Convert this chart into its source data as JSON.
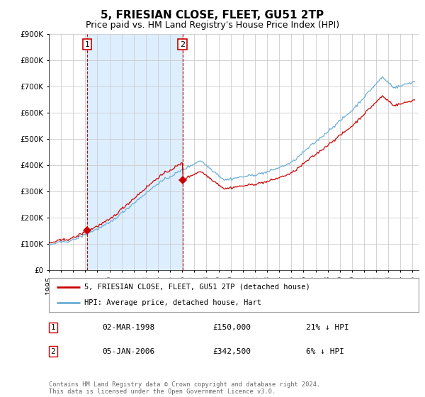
{
  "title": "5, FRIESIAN CLOSE, FLEET, GU51 2TP",
  "subtitle": "Price paid vs. HM Land Registry's House Price Index (HPI)",
  "ylim": [
    0,
    900000
  ],
  "yticks": [
    0,
    100000,
    200000,
    300000,
    400000,
    500000,
    600000,
    700000,
    800000,
    900000
  ],
  "ytick_labels": [
    "£0",
    "£100K",
    "£200K",
    "£300K",
    "£400K",
    "£500K",
    "£600K",
    "£700K",
    "£800K",
    "£900K"
  ],
  "xlim_start": 1995.0,
  "xlim_end": 2025.5,
  "sale1_x": 1998.167,
  "sale1_y": 150000,
  "sale1_label": "1",
  "sale2_x": 2006.017,
  "sale2_y": 342500,
  "sale2_label": "2",
  "hpi_color": "#6baed6",
  "price_color": "#cc0000",
  "sale_marker_color": "#cc0000",
  "sale_vline_color": "#cc0000",
  "shade_color": "#ddeeff",
  "background_color": "#ffffff",
  "grid_color": "#cccccc",
  "legend1": "5, FRIESIAN CLOSE, FLEET, GU51 2TP (detached house)",
  "legend2": "HPI: Average price, detached house, Hart",
  "table_row1": [
    "1",
    "02-MAR-1998",
    "£150,000",
    "21% ↓ HPI"
  ],
  "table_row2": [
    "2",
    "05-JAN-2006",
    "£342,500",
    "6% ↓ HPI"
  ],
  "footnote": "Contains HM Land Registry data © Crown copyright and database right 2024.\nThis data is licensed under the Open Government Licence v3.0.",
  "title_fontsize": 11,
  "subtitle_fontsize": 9,
  "tick_fontsize": 7.5
}
